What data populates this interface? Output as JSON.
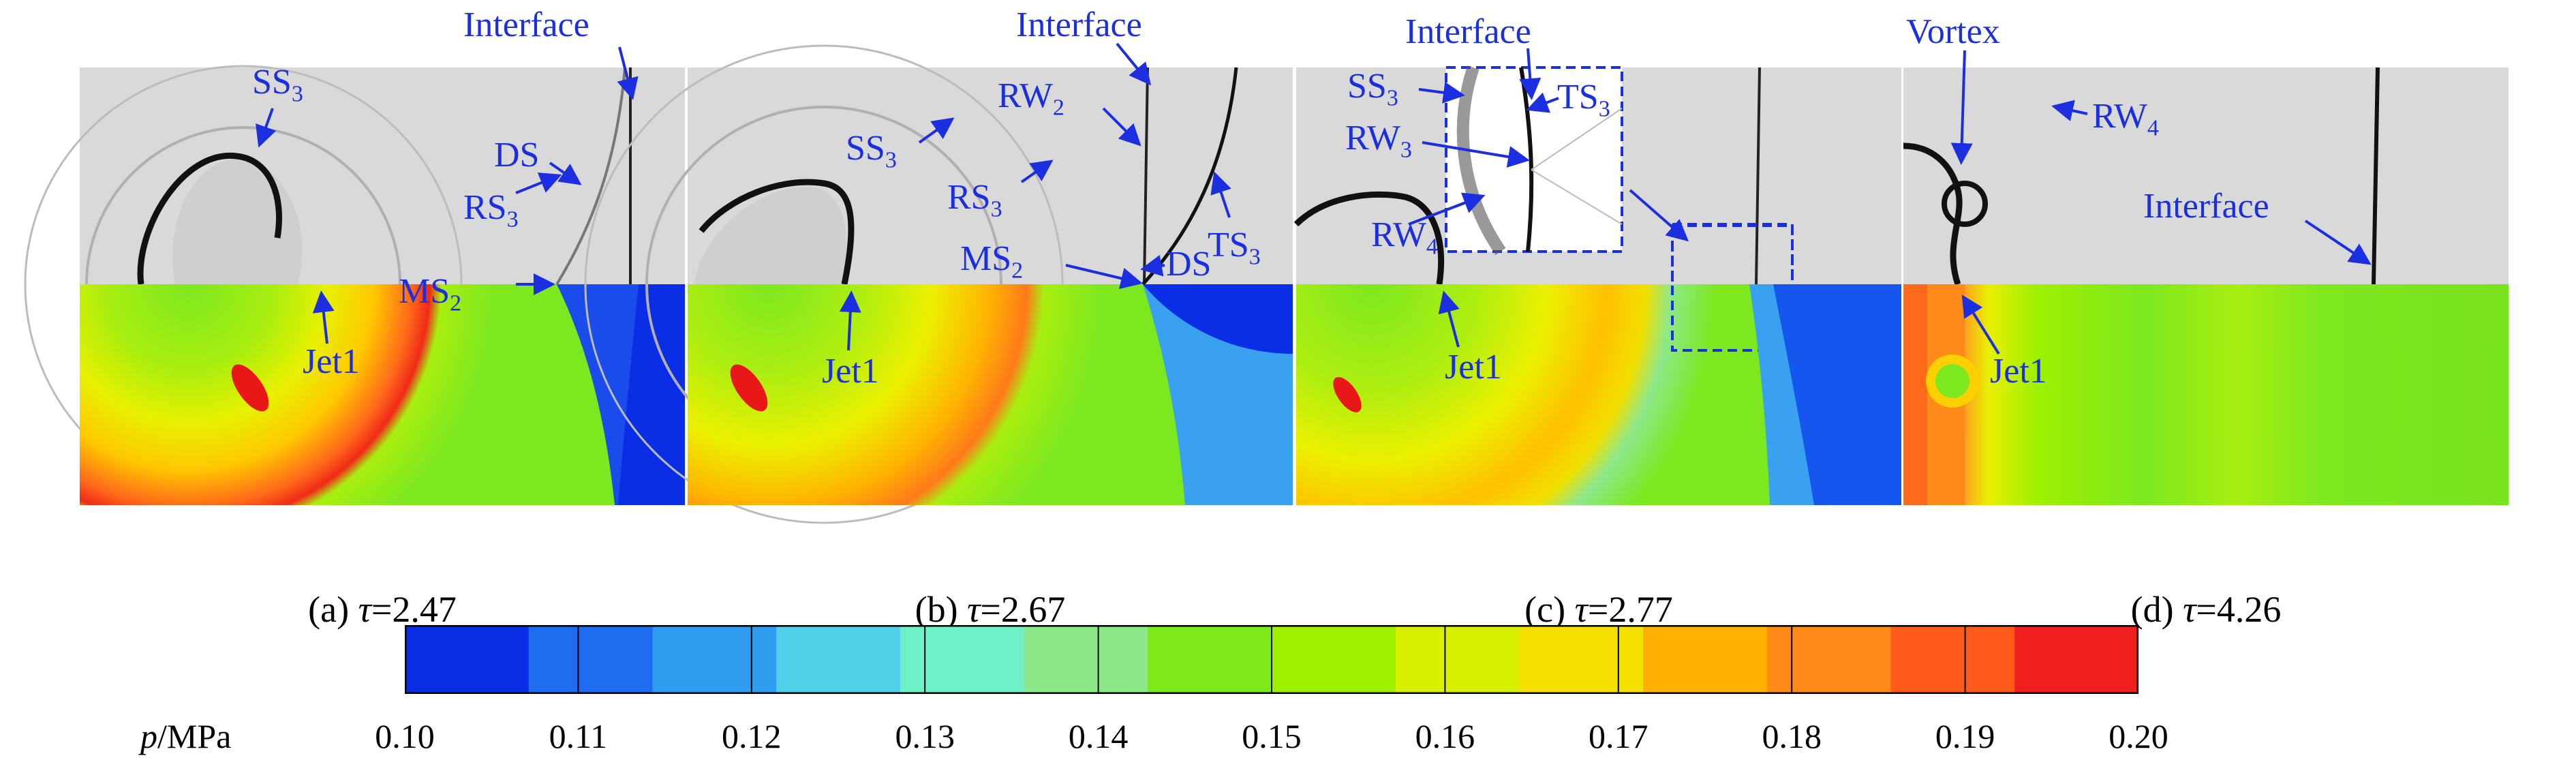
{
  "panels": [
    {
      "caption_prefix": "(a)",
      "tau_symbol": "τ",
      "tau_value": "=2.47",
      "labels": {
        "ss": "SS",
        "ss_sub": "3",
        "rs": "RS",
        "rs_sub": "3",
        "ds": "DS",
        "ms": "MS",
        "ms_sub": "2",
        "interface": "Interface",
        "jet": "Jet1"
      }
    },
    {
      "caption_prefix": "(b)",
      "tau_symbol": "τ",
      "tau_value": "=2.67",
      "labels": {
        "interface": "Interface",
        "rw": "RW",
        "rw_sub": "2",
        "ss": "SS",
        "ss_sub": "3",
        "rs": "RS",
        "rs_sub": "3",
        "ts": "TS",
        "ts_sub": "3",
        "ms": "MS",
        "ms_sub": "2",
        "ds": "DS",
        "jet": "Jet1"
      }
    },
    {
      "caption_prefix": "(c)",
      "tau_symbol": "τ",
      "tau_value": "=2.77",
      "labels": {
        "interface": "Interface",
        "ss": "SS",
        "ss_sub": "3",
        "ts": "TS",
        "ts_sub": "3",
        "rw3": "RW",
        "rw3_sub": "3",
        "rw4": "RW",
        "rw4_sub": "4",
        "jet": "Jet1"
      }
    },
    {
      "caption_prefix": "(d)",
      "tau_symbol": "τ",
      "tau_value": "=4.26",
      "labels": {
        "vortex": "Vortex",
        "rw": "RW",
        "rw_sub": "4",
        "interface": "Interface",
        "jet": "Jet1"
      }
    }
  ],
  "colorbar": {
    "label_var": "p",
    "label_unit": "/MPa",
    "ticks": [
      "0.10",
      "0.11",
      "0.12",
      "0.13",
      "0.14",
      "0.15",
      "0.16",
      "0.17",
      "0.18",
      "0.19",
      "0.20"
    ],
    "min": 0.1,
    "max": 0.2,
    "colors": [
      "#0a2ee6",
      "#1f6cf0",
      "#2f9cf0",
      "#4fd0e8",
      "#6ff0c8",
      "#8ee88a",
      "#7ee818",
      "#9ef000",
      "#d8f000",
      "#f4e000",
      "#ffb000",
      "#ff8a1a",
      "#ff5a1a",
      "#f02020"
    ]
  },
  "colors": {
    "annotation": "#1c2fe0",
    "schlieren_bg": "#d9d9d9",
    "field_green": "#79e21e",
    "field_blue": "#0a2ee6"
  }
}
